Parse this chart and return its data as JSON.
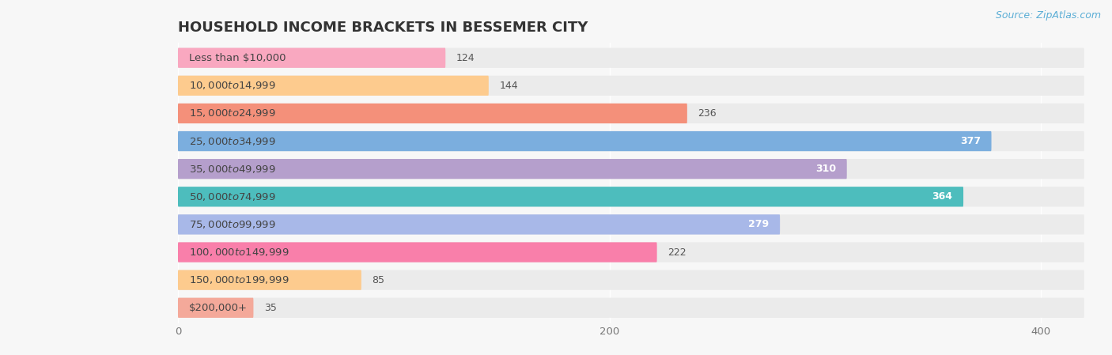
{
  "title": "HOUSEHOLD INCOME BRACKETS IN BESSEMER CITY",
  "source": "Source: ZipAtlas.com",
  "categories": [
    "Less than $10,000",
    "$10,000 to $14,999",
    "$15,000 to $24,999",
    "$25,000 to $34,999",
    "$35,000 to $49,999",
    "$50,000 to $74,999",
    "$75,000 to $99,999",
    "$100,000 to $149,999",
    "$150,000 to $199,999",
    "$200,000+"
  ],
  "values": [
    124,
    144,
    236,
    377,
    310,
    364,
    279,
    222,
    85,
    35
  ],
  "bar_colors": [
    "#F9A8C0",
    "#FDCB8E",
    "#F4907A",
    "#7BAEDE",
    "#B59FCC",
    "#4DBDBD",
    "#A8B8E8",
    "#F97FAA",
    "#FDCB8E",
    "#F4A99A"
  ],
  "xlim": [
    0,
    420
  ],
  "xticks": [
    0,
    200,
    400
  ],
  "background_color": "#f7f7f7",
  "row_bg_color": "#ebebeb",
  "title_fontsize": 13,
  "label_fontsize": 9.5,
  "value_fontsize": 9,
  "source_fontsize": 9,
  "value_threshold": 260
}
